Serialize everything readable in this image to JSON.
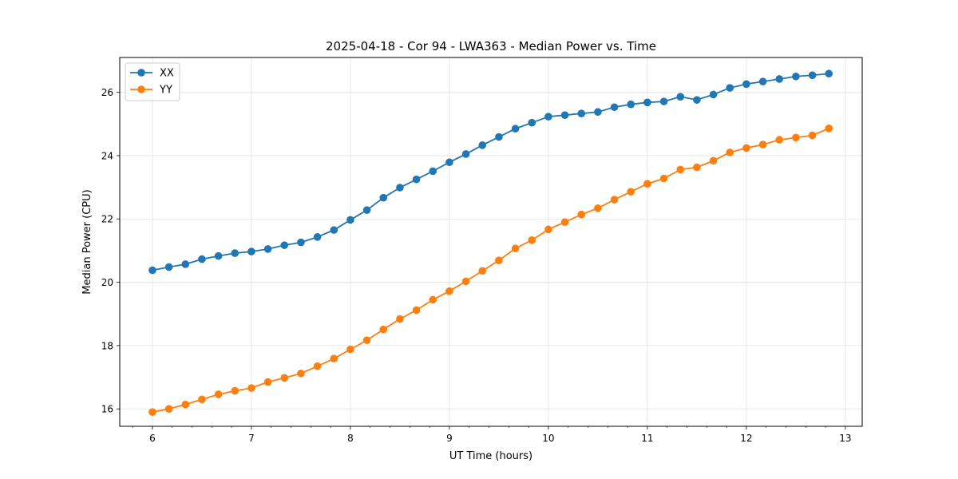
{
  "chart_data": {
    "type": "line",
    "title": "2025-04-18 - Cor 94 - LWA363 - Median Power vs. Time",
    "xlabel": "UT Time (hours)",
    "ylabel": "Median Power (CPU)",
    "xlim": [
      5.67,
      13.17
    ],
    "ylim": [
      15.45,
      27.1
    ],
    "xticks": [
      6,
      7,
      8,
      9,
      10,
      11,
      12,
      13
    ],
    "yticks": [
      16,
      18,
      20,
      22,
      24,
      26
    ],
    "x_minor_step": 0.2,
    "grid": true,
    "legend_position": "top-left",
    "x": [
      6.0,
      6.1667,
      6.3333,
      6.5,
      6.6667,
      6.8333,
      7.0,
      7.1667,
      7.3333,
      7.5,
      7.6667,
      7.8333,
      8.0,
      8.1667,
      8.3333,
      8.5,
      8.6667,
      8.8333,
      9.0,
      9.1667,
      9.3333,
      9.5,
      9.6667,
      9.8333,
      10.0,
      10.1667,
      10.3333,
      10.5,
      10.6667,
      10.8333,
      11.0,
      11.1667,
      11.3333,
      11.5,
      11.6667,
      11.8333,
      12.0,
      12.1667,
      12.3333,
      12.5,
      12.6667,
      12.8333
    ],
    "series": [
      {
        "name": "XX",
        "color": "#1f77b4",
        "values": [
          20.38,
          20.48,
          20.57,
          20.73,
          20.83,
          20.92,
          20.97,
          21.05,
          21.17,
          21.26,
          21.43,
          21.65,
          21.97,
          22.28,
          22.67,
          22.99,
          23.25,
          23.51,
          23.79,
          24.05,
          24.33,
          24.59,
          24.85,
          25.04,
          25.23,
          25.28,
          25.33,
          25.38,
          25.53,
          25.62,
          25.68,
          25.71,
          25.86,
          25.76,
          25.93,
          26.14,
          26.26,
          26.34,
          26.42,
          26.5,
          26.54,
          26.59
        ]
      },
      {
        "name": "YY",
        "color": "#ff7f0e",
        "values": [
          15.9,
          16.0,
          16.14,
          16.3,
          16.46,
          16.57,
          16.66,
          16.85,
          16.98,
          17.12,
          17.35,
          17.59,
          17.88,
          18.17,
          18.51,
          18.84,
          19.12,
          19.45,
          19.72,
          20.03,
          20.36,
          20.69,
          21.07,
          21.33,
          21.67,
          21.9,
          22.14,
          22.34,
          22.61,
          22.86,
          23.11,
          23.28,
          23.56,
          23.63,
          23.84,
          24.1,
          24.24,
          24.35,
          24.5,
          24.57,
          24.64,
          24.86
        ]
      }
    ]
  }
}
